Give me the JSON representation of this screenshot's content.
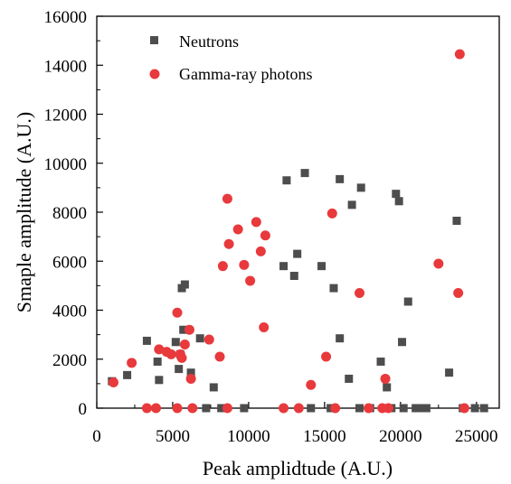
{
  "chart_data": {
    "type": "scatter",
    "title": "",
    "xlabel": "Peak amplidtude (A.U.)",
    "ylabel": "Smaple amplitude (A.U.)",
    "xlim": [
      0,
      26500
    ],
    "ylim": [
      0,
      16000
    ],
    "xticks": [
      0,
      5000,
      10000,
      15000,
      20000,
      25000
    ],
    "yticks": [
      0,
      2000,
      4000,
      6000,
      8000,
      10000,
      12000,
      14000,
      16000
    ],
    "legend_position": "top-left",
    "grid": false,
    "series": [
      {
        "name": "Neutrons",
        "marker": "square",
        "color": "#4d4d4d",
        "points": [
          [
            1000,
            1100
          ],
          [
            2000,
            1350
          ],
          [
            3300,
            2750
          ],
          [
            4000,
            1900
          ],
          [
            4100,
            1150
          ],
          [
            5200,
            2700
          ],
          [
            5400,
            1600
          ],
          [
            5500,
            2200
          ],
          [
            5700,
            3200
          ],
          [
            5600,
            4900
          ],
          [
            5800,
            5050
          ],
          [
            6200,
            1450
          ],
          [
            6800,
            2850
          ],
          [
            7200,
            0
          ],
          [
            7700,
            850
          ],
          [
            8200,
            0
          ],
          [
            9700,
            0
          ],
          [
            12300,
            5800
          ],
          [
            12500,
            9300
          ],
          [
            13000,
            5400
          ],
          [
            13200,
            6300
          ],
          [
            13700,
            9600
          ],
          [
            14100,
            0
          ],
          [
            14800,
            5800
          ],
          [
            15400,
            0
          ],
          [
            15600,
            4900
          ],
          [
            16000,
            2850
          ],
          [
            16000,
            9350
          ],
          [
            16600,
            1200
          ],
          [
            16800,
            8300
          ],
          [
            17300,
            0
          ],
          [
            17400,
            9000
          ],
          [
            18000,
            0
          ],
          [
            18700,
            1900
          ],
          [
            18900,
            0
          ],
          [
            19100,
            850
          ],
          [
            19400,
            0
          ],
          [
            19700,
            8750
          ],
          [
            19900,
            8450
          ],
          [
            20100,
            2700
          ],
          [
            20200,
            0
          ],
          [
            20500,
            4350
          ],
          [
            21000,
            0
          ],
          [
            21300,
            0
          ],
          [
            21700,
            0
          ],
          [
            23200,
            1450
          ],
          [
            23700,
            7650
          ],
          [
            24100,
            0
          ],
          [
            24900,
            0
          ],
          [
            25500,
            0
          ]
        ]
      },
      {
        "name": "Gamma-ray photons",
        "marker": "circle",
        "color": "#e8393c",
        "points": [
          [
            1100,
            1050
          ],
          [
            2300,
            1850
          ],
          [
            3300,
            0
          ],
          [
            3900,
            0
          ],
          [
            4100,
            2400
          ],
          [
            4600,
            2300
          ],
          [
            4900,
            2200
          ],
          [
            5300,
            3900
          ],
          [
            5500,
            2200
          ],
          [
            5600,
            2050
          ],
          [
            5800,
            2600
          ],
          [
            6100,
            3200
          ],
          [
            6200,
            1200
          ],
          [
            7400,
            2800
          ],
          [
            8100,
            2100
          ],
          [
            8300,
            5800
          ],
          [
            8600,
            8550
          ],
          [
            8700,
            6700
          ],
          [
            9300,
            7300
          ],
          [
            9700,
            5850
          ],
          [
            10100,
            5200
          ],
          [
            10500,
            7600
          ],
          [
            10800,
            6400
          ],
          [
            11000,
            3300
          ],
          [
            11100,
            7050
          ],
          [
            12300,
            0
          ],
          [
            14100,
            950
          ],
          [
            15100,
            2100
          ],
          [
            15500,
            7950
          ],
          [
            17300,
            4700
          ],
          [
            17900,
            0
          ],
          [
            18800,
            0
          ],
          [
            19000,
            1200
          ],
          [
            22500,
            5900
          ],
          [
            23800,
            4700
          ],
          [
            23900,
            14450
          ],
          [
            24200,
            0
          ],
          [
            5300,
            0
          ],
          [
            6300,
            0
          ],
          [
            8600,
            0
          ],
          [
            13300,
            0
          ],
          [
            15700,
            0
          ],
          [
            19200,
            0
          ]
        ]
      }
    ]
  }
}
